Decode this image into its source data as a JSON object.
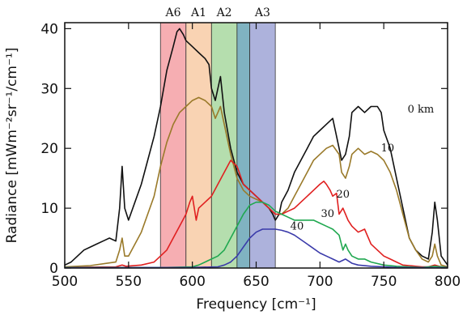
{
  "chart_data": {
    "type": "line",
    "xlabel": "Frequency [cm⁻¹]",
    "ylabel": "Radiance [mWm⁻²sr⁻¹/cm⁻¹]",
    "xlim": [
      500,
      800
    ],
    "ylim": [
      0,
      41
    ],
    "x_ticks": [
      500,
      550,
      600,
      650,
      700,
      750,
      800
    ],
    "y_ticks": [
      0,
      10,
      20,
      30,
      40
    ],
    "grid": false,
    "bands": [
      {
        "label": "A6",
        "from": 575,
        "to": 595,
        "color": "#f4a0a4"
      },
      {
        "label": "A1",
        "from": 595,
        "to": 615,
        "color": "#f8cba6"
      },
      {
        "label": "A2",
        "from": 615,
        "to": 635,
        "color": "#a8d8a0"
      },
      {
        "label": "",
        "from": 635,
        "to": 645,
        "color": "#6aa6b6"
      },
      {
        "label": "A3",
        "from": 645,
        "to": 665,
        "color": "#9fa4d6"
      }
    ],
    "series": [
      {
        "name": "0 km",
        "color": "#111111",
        "x": [
          500,
          505,
          510,
          515,
          520,
          525,
          530,
          535,
          540,
          543,
          545,
          547,
          550,
          555,
          560,
          565,
          570,
          575,
          580,
          585,
          588,
          590,
          593,
          595,
          600,
          605,
          610,
          613,
          615,
          618,
          620,
          622,
          625,
          630,
          635,
          640,
          645,
          650,
          655,
          660,
          663,
          665,
          668,
          670,
          675,
          680,
          685,
          690,
          695,
          700,
          705,
          710,
          715,
          717,
          720,
          723,
          725,
          730,
          735,
          740,
          745,
          748,
          750,
          755,
          760,
          765,
          770,
          775,
          780,
          785,
          788,
          790,
          792,
          795,
          800
        ],
        "y": [
          0.5,
          1,
          2,
          3,
          3.5,
          4,
          4.5,
          5,
          4.5,
          10,
          17,
          10,
          8,
          11,
          14,
          18,
          22,
          27,
          33,
          37,
          39.5,
          40,
          39,
          38,
          37,
          36,
          35,
          34,
          30,
          28,
          30,
          32,
          26,
          20,
          16,
          14,
          13,
          12,
          11,
          10,
          9,
          8,
          9,
          11,
          13,
          16,
          18,
          20,
          22,
          23,
          24,
          25,
          20,
          18,
          19,
          22,
          26,
          27,
          26,
          27,
          27,
          26,
          23,
          20,
          15,
          10,
          5,
          3,
          2,
          1.5,
          6,
          11,
          8,
          2,
          0.5
        ]
      },
      {
        "name": "10",
        "color": "#9a7a2a",
        "x": [
          500,
          520,
          540,
          543,
          545,
          547,
          550,
          560,
          570,
          575,
          580,
          585,
          590,
          595,
          600,
          605,
          610,
          615,
          618,
          620,
          622,
          625,
          630,
          635,
          640,
          645,
          650,
          655,
          660,
          665,
          670,
          675,
          680,
          685,
          690,
          695,
          700,
          705,
          710,
          715,
          717,
          720,
          723,
          725,
          730,
          735,
          740,
          745,
          750,
          755,
          760,
          765,
          770,
          775,
          780,
          785,
          788,
          790,
          792,
          795,
          800
        ],
        "y": [
          0.2,
          0.4,
          1,
          3,
          5,
          2,
          2,
          6,
          12,
          17,
          21,
          24,
          26,
          27,
          28,
          28.5,
          28,
          27,
          25,
          26,
          27,
          24,
          19,
          15,
          13,
          12,
          11.5,
          11,
          10,
          9,
          9,
          10,
          12,
          14,
          16,
          18,
          19,
          20,
          20.5,
          19,
          16,
          15,
          17,
          19,
          20,
          19,
          19.5,
          19,
          18,
          16,
          13,
          9,
          5,
          3,
          1.5,
          1,
          2,
          4,
          2,
          0.5,
          0.2
        ]
      },
      {
        "name": "20",
        "color": "#e02020",
        "x": [
          500,
          540,
          545,
          548,
          560,
          570,
          575,
          580,
          585,
          590,
          595,
          598,
          600,
          603,
          605,
          610,
          615,
          620,
          625,
          630,
          635,
          640,
          645,
          650,
          655,
          660,
          665,
          670,
          675,
          680,
          685,
          690,
          695,
          700,
          703,
          705,
          708,
          710,
          713,
          715,
          718,
          720,
          722,
          725,
          730,
          735,
          740,
          745,
          750,
          755,
          760,
          765,
          770,
          775,
          780,
          785,
          790,
          795,
          800
        ],
        "y": [
          0.1,
          0.2,
          0.5,
          0.3,
          0.5,
          1,
          2,
          3,
          5,
          7,
          9,
          11,
          12,
          8,
          10,
          11,
          12,
          14,
          16,
          18,
          17,
          14,
          13,
          12,
          11,
          10,
          9,
          9,
          9.5,
          10,
          11,
          12,
          13,
          14,
          14.5,
          14,
          13,
          12,
          12.5,
          9,
          10,
          9,
          8,
          7,
          6,
          6.5,
          4,
          3,
          2,
          1.5,
          1,
          0.5,
          0.4,
          0.3,
          0.2,
          0.2,
          0.5,
          0.2,
          0.1
        ]
      },
      {
        "name": "30",
        "color": "#20a850",
        "x": [
          500,
          580,
          600,
          605,
          610,
          615,
          620,
          625,
          630,
          635,
          640,
          645,
          650,
          655,
          660,
          665,
          670,
          675,
          680,
          685,
          690,
          695,
          700,
          705,
          710,
          715,
          718,
          720,
          722,
          725,
          730,
          735,
          740,
          750,
          760,
          770,
          780,
          790,
          800
        ],
        "y": [
          0.1,
          0.1,
          0.2,
          0.5,
          1,
          1.5,
          2,
          3,
          5,
          7,
          9,
          10.5,
          11,
          11,
          10.5,
          9.5,
          9,
          8.5,
          8,
          8,
          8,
          8,
          7.5,
          7,
          6.5,
          5.5,
          3,
          4,
          3,
          2,
          1.5,
          1.5,
          1,
          0.5,
          0.3,
          0.2,
          0.1,
          0.3,
          0.1
        ]
      },
      {
        "name": "40",
        "color": "#3a3aaa",
        "x": [
          500,
          600,
          620,
          625,
          630,
          635,
          640,
          645,
          650,
          655,
          660,
          665,
          670,
          675,
          680,
          690,
          700,
          705,
          710,
          715,
          720,
          725,
          730,
          740,
          750,
          760,
          780,
          800
        ],
        "y": [
          0.05,
          0.1,
          0.2,
          0.5,
          1,
          2,
          3.5,
          5,
          6,
          6.5,
          6.5,
          6.5,
          6.3,
          6,
          5.5,
          4,
          2.5,
          2,
          1.5,
          1,
          1.5,
          0.8,
          0.5,
          0.3,
          0.2,
          0.1,
          0.05,
          0.05
        ]
      }
    ],
    "annotations": [
      {
        "text": "0 km",
        "x": 779,
        "y": 26
      },
      {
        "text": "10",
        "x": 753,
        "y": 19.5
      },
      {
        "text": "20",
        "x": 718,
        "y": 11.8
      },
      {
        "text": "30",
        "x": 706,
        "y": 8.5
      },
      {
        "text": "40",
        "x": 682,
        "y": 6.4
      }
    ]
  }
}
